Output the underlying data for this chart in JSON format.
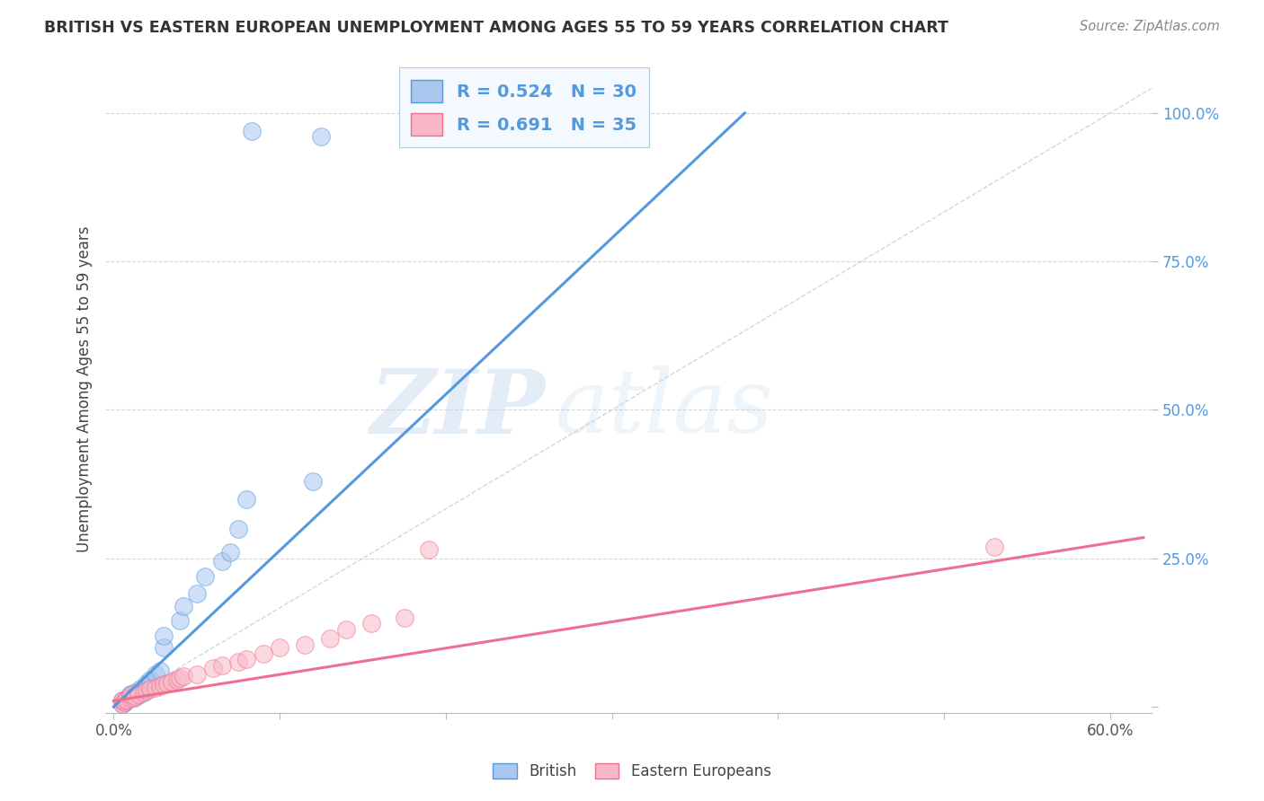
{
  "title": "BRITISH VS EASTERN EUROPEAN UNEMPLOYMENT AMONG AGES 55 TO 59 YEARS CORRELATION CHART",
  "source": "Source: ZipAtlas.com",
  "ylabel": "Unemployment Among Ages 55 to 59 years",
  "xlim": [
    -0.005,
    0.625
  ],
  "ylim": [
    -0.01,
    1.08
  ],
  "british_color": "#A8C8F0",
  "eastern_color": "#F8B8C8",
  "british_line_color": "#5599DD",
  "eastern_line_color": "#EE7090",
  "ref_line_color": "#BBBBBB",
  "british_R": 0.524,
  "british_N": 30,
  "eastern_R": 0.691,
  "eastern_N": 35,
  "british_scatter_x": [
    0.005,
    0.005,
    0.007,
    0.008,
    0.009,
    0.01,
    0.01,
    0.012,
    0.013,
    0.015,
    0.016,
    0.018,
    0.02,
    0.02,
    0.022,
    0.025,
    0.028,
    0.03,
    0.03,
    0.04,
    0.042,
    0.05,
    0.055,
    0.065,
    0.07,
    0.075,
    0.08,
    0.12,
    0.083,
    0.125
  ],
  "british_scatter_y": [
    0.005,
    0.01,
    0.008,
    0.012,
    0.015,
    0.018,
    0.022,
    0.015,
    0.025,
    0.02,
    0.03,
    0.025,
    0.035,
    0.04,
    0.045,
    0.055,
    0.06,
    0.1,
    0.12,
    0.145,
    0.17,
    0.19,
    0.22,
    0.245,
    0.26,
    0.3,
    0.35,
    0.38,
    0.97,
    0.96
  ],
  "eastern_scatter_x": [
    0.005,
    0.005,
    0.006,
    0.007,
    0.008,
    0.01,
    0.01,
    0.012,
    0.013,
    0.015,
    0.018,
    0.02,
    0.022,
    0.025,
    0.028,
    0.03,
    0.032,
    0.035,
    0.038,
    0.04,
    0.042,
    0.05,
    0.06,
    0.065,
    0.075,
    0.08,
    0.09,
    0.1,
    0.115,
    0.13,
    0.14,
    0.155,
    0.175,
    0.19,
    0.53
  ],
  "eastern_scatter_y": [
    0.005,
    0.01,
    0.008,
    0.01,
    0.012,
    0.015,
    0.02,
    0.015,
    0.018,
    0.022,
    0.025,
    0.028,
    0.03,
    0.032,
    0.035,
    0.038,
    0.04,
    0.042,
    0.045,
    0.048,
    0.052,
    0.055,
    0.065,
    0.07,
    0.075,
    0.08,
    0.09,
    0.1,
    0.105,
    0.115,
    0.13,
    0.14,
    0.15,
    0.265,
    0.27
  ],
  "british_line_x0": 0.0,
  "british_line_y0": 0.0,
  "british_line_x1": 0.38,
  "british_line_y1": 1.0,
  "eastern_line_x0": 0.0,
  "eastern_line_y0": 0.01,
  "eastern_line_x1": 0.62,
  "eastern_line_y1": 0.285,
  "bg_color": "#FFFFFF",
  "grid_color": "#CCCCCC",
  "watermark_zip": "ZIP",
  "watermark_atlas": "atlas",
  "dot_size": 200,
  "dot_alpha": 0.55
}
